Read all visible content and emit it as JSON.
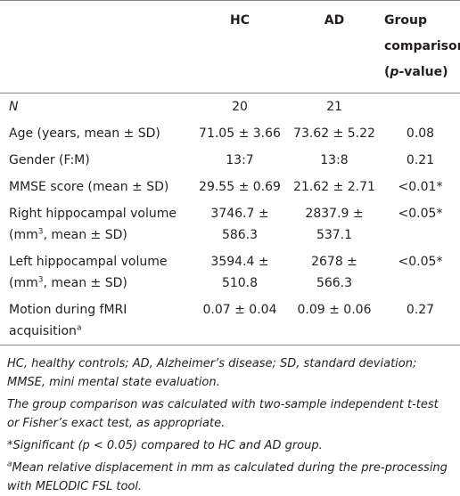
{
  "table": {
    "header": {
      "hc": "HC",
      "ad": "AD",
      "group": [
        "Group comparison (",
        {
          "em": "p"
        },
        "-value)"
      ]
    },
    "rows": [
      {
        "label": [
          {
            "em": "N"
          }
        ],
        "hc": "20",
        "ad": "21"
      },
      {
        "label": [
          "Age (years, mean ± SD)"
        ],
        "hc": "71.05 ± 3.66",
        "ad": "73.62 ± 5.22",
        "p": "0.08"
      },
      {
        "label": [
          "Gender (F:M)"
        ],
        "hc": "13:7",
        "ad": "13:8",
        "p": "0.21"
      },
      {
        "label": [
          "MMSE score (mean ± SD)"
        ],
        "hc": "29.55 ± 0.69",
        "ad": "21.62 ± 2.71",
        "p": "<0.01*"
      },
      {
        "label": [
          "Right hippocampal volume (mm",
          {
            "sup": "3"
          },
          ", mean ± SD)"
        ],
        "hc": "3746.7 ± 586.3",
        "ad": "2837.9 ± 537.1",
        "p": "<0.05*"
      },
      {
        "label": [
          "Left hippocampal volume (mm",
          {
            "sup": "3"
          },
          ", mean ± SD)"
        ],
        "hc": "3594.4 ± 510.8",
        "ad": "2678 ± 566.3",
        "p": "<0.05*"
      },
      {
        "label": [
          "Motion during fMRI acquisition",
          {
            "sup": "a"
          }
        ],
        "hc": "0.07 ± 0.04",
        "ad": "0.09 ± 0.06",
        "p": "0.27"
      }
    ],
    "footnotes": [
      [
        "HC, healthy controls; AD, Alzheimer’s disease; SD, standard deviation; MMSE, mini mental state evaluation."
      ],
      [
        "The group comparison was calculated with two-sample independent t-test or Fisher’s exact test, as appropriate."
      ],
      [
        "*Significant (p < 0.05) compared to HC and AD group."
      ],
      [
        {
          "sup": "a"
        },
        "Mean relative displacement in mm as calculated during the pre-processing with MELODIC FSL tool."
      ]
    ]
  }
}
